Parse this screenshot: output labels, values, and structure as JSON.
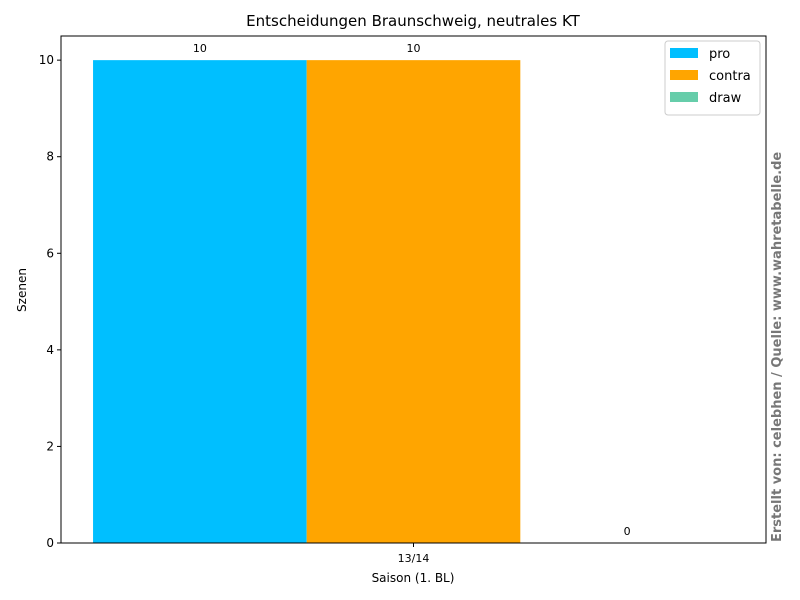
{
  "chart_data": {
    "type": "bar",
    "title": "Entscheidungen Braunschweig, neutrales KT",
    "xlabel": "Saison (1. BL)",
    "ylabel": "Szenen",
    "categories": [
      "13/14"
    ],
    "series": [
      {
        "name": "pro",
        "color": "#00bfff",
        "values": [
          10
        ]
      },
      {
        "name": "contra",
        "color": "#ffa500",
        "values": [
          10
        ]
      },
      {
        "name": "draw",
        "color": "#66cdaa",
        "values": [
          0
        ]
      }
    ],
    "ylim": [
      0,
      10.5
    ],
    "yticks": [
      0,
      2,
      4,
      6,
      8,
      10
    ],
    "grid": false,
    "legend_position": "top-right"
  },
  "watermark": "Erstellt von: celebhen / Quelle: www.wahretabelle.de"
}
